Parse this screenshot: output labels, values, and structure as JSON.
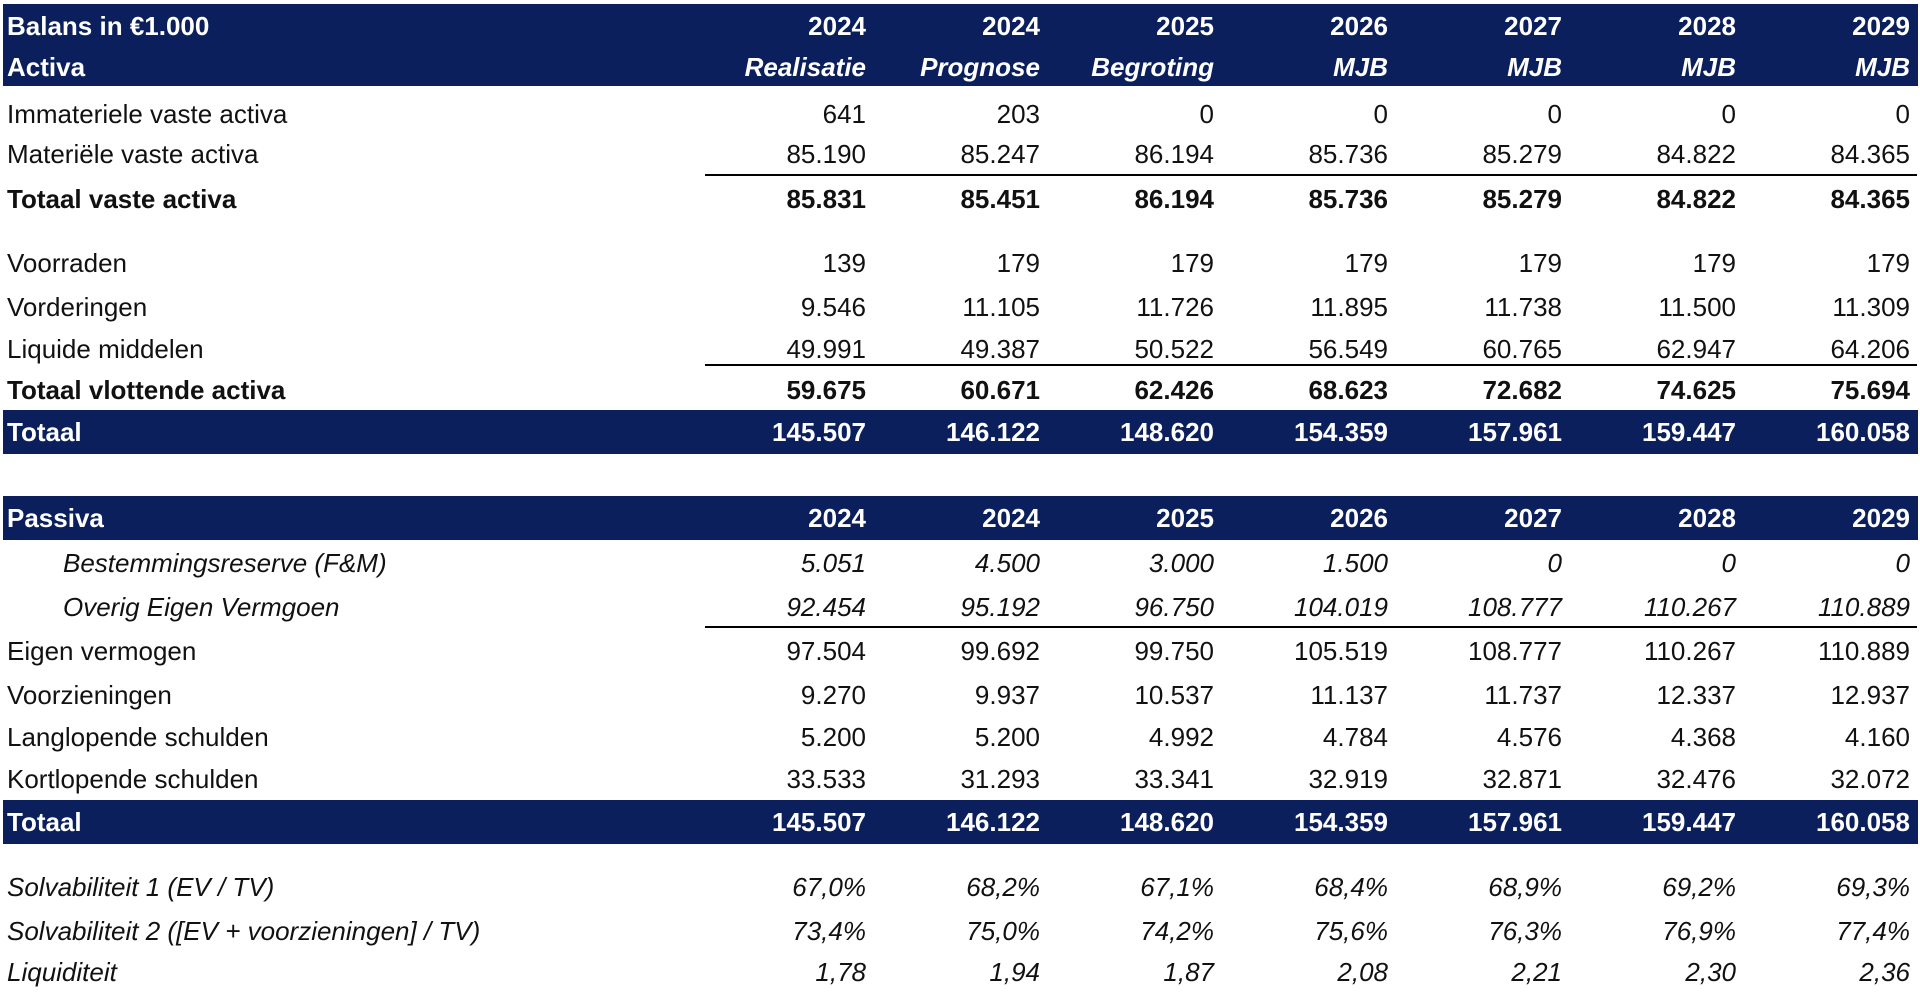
{
  "activa": {
    "header": {
      "title": "Balans in €1.000",
      "subtitle": "Activa",
      "years": [
        "2024",
        "2024",
        "2025",
        "2026",
        "2027",
        "2028",
        "2029"
      ],
      "types": [
        "Realisatie",
        "Prognose",
        "Begroting",
        "MJB",
        "MJB",
        "MJB",
        "MJB"
      ]
    },
    "rows": [
      {
        "label": "Immateriele vaste activa",
        "values": [
          "641",
          "203",
          "0",
          "0",
          "0",
          "0",
          "0"
        ]
      },
      {
        "label": "Materiële vaste activa",
        "values": [
          "85.190",
          "85.247",
          "86.194",
          "85.736",
          "85.279",
          "84.822",
          "84.365"
        ]
      },
      {
        "label": "Totaal vaste activa",
        "values": [
          "85.831",
          "85.451",
          "86.194",
          "85.736",
          "85.279",
          "84.822",
          "84.365"
        ]
      },
      {
        "label": "Voorraden",
        "values": [
          "139",
          "179",
          "179",
          "179",
          "179",
          "179",
          "179"
        ]
      },
      {
        "label": "Vorderingen",
        "values": [
          "9.546",
          "11.105",
          "11.726",
          "11.895",
          "11.738",
          "11.500",
          "11.309"
        ]
      },
      {
        "label": "Liquide middelen",
        "values": [
          "49.991",
          "49.387",
          "50.522",
          "56.549",
          "60.765",
          "62.947",
          "64.206"
        ]
      },
      {
        "label": "Totaal vlottende activa",
        "values": [
          "59.675",
          "60.671",
          "62.426",
          "68.623",
          "72.682",
          "74.625",
          "75.694"
        ]
      }
    ],
    "total": {
      "label": "Totaal",
      "values": [
        "145.507",
        "146.122",
        "148.620",
        "154.359",
        "157.961",
        "159.447",
        "160.058"
      ]
    }
  },
  "passiva": {
    "header": {
      "title": "Passiva",
      "years": [
        "2024",
        "2024",
        "2025",
        "2026",
        "2027",
        "2028",
        "2029"
      ]
    },
    "rows": [
      {
        "label": "Bestemmingsreserve (F&M)",
        "values": [
          "5.051",
          "4.500",
          "3.000",
          "1.500",
          "0",
          "0",
          "0"
        ]
      },
      {
        "label": "Overig Eigen Vermgoen",
        "values": [
          "92.454",
          "95.192",
          "96.750",
          "104.019",
          "108.777",
          "110.267",
          "110.889"
        ]
      },
      {
        "label": "Eigen vermogen",
        "values": [
          "97.504",
          "99.692",
          "99.750",
          "105.519",
          "108.777",
          "110.267",
          "110.889"
        ]
      },
      {
        "label": "Voorzieningen",
        "values": [
          "9.270",
          "9.937",
          "10.537",
          "11.137",
          "11.737",
          "12.337",
          "12.937"
        ]
      },
      {
        "label": "Langlopende schulden",
        "values": [
          "5.200",
          "5.200",
          "4.992",
          "4.784",
          "4.576",
          "4.368",
          "4.160"
        ]
      },
      {
        "label": "Kortlopende schulden",
        "values": [
          "33.533",
          "31.293",
          "33.341",
          "32.919",
          "32.871",
          "32.476",
          "32.072"
        ]
      }
    ],
    "total": {
      "label": "Totaal",
      "values": [
        "145.507",
        "146.122",
        "148.620",
        "154.359",
        "157.961",
        "159.447",
        "160.058"
      ]
    }
  },
  "ratios": [
    {
      "label": "Solvabiliteit 1 (EV / TV)",
      "values": [
        "67,0%",
        "68,2%",
        "67,1%",
        "68,4%",
        "68,9%",
        "69,2%",
        "69,3%"
      ]
    },
    {
      "label": "Solvabiliteit 2 ([EV + voorzieningen] / TV)",
      "values": [
        "73,4%",
        "75,0%",
        "74,2%",
        "75,6%",
        "76,3%",
        "76,9%",
        "77,4%"
      ]
    },
    {
      "label": "Liquiditeit",
      "values": [
        "1,78",
        "1,94",
        "1,87",
        "2,08",
        "2,21",
        "2,30",
        "2,36"
      ]
    }
  ],
  "colors": {
    "header_band": "#0b1f5c",
    "header_text": "#ffffff",
    "text": "#111111"
  }
}
